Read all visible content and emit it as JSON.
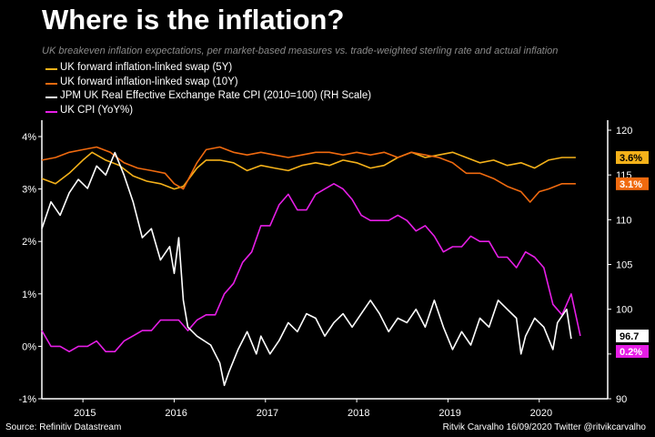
{
  "title": "Where is the inflation?",
  "subtitle": "UK breakeven inflation expectations, per market-based measures vs. trade-weighted sterling rate and actual inflation",
  "footer": {
    "source": "Source: Refinitiv Datastream",
    "credit": "Ritvik Carvalho 16/09/2020 Twitter @ritvikcarvalho"
  },
  "chart_data": {
    "type": "line",
    "x_axis": {
      "ticks": [
        "2015",
        "2016",
        "2017",
        "2018",
        "2019",
        "2020"
      ],
      "range": [
        2014.55,
        2020.75
      ]
    },
    "y_axis_left": {
      "ticks": [
        "-1%",
        "0%",
        "1%",
        "2%",
        "3%",
        "4%"
      ],
      "tick_values": [
        -1,
        0,
        1,
        2,
        3,
        4
      ],
      "range": [
        -1,
        4.3
      ]
    },
    "y_axis_right": {
      "ticks": [
        "90",
        "95",
        "100",
        "105",
        "110",
        "115",
        "120"
      ],
      "tick_values": [
        90,
        95,
        100,
        105,
        110,
        115,
        120
      ],
      "range": [
        90,
        120
      ]
    },
    "grid": false,
    "legend_position": "top-left",
    "series": [
      {
        "name": "UK forward inflation-linked swap (5Y)",
        "color": "#f5b21a",
        "axis": "left",
        "end_label": "3.6%",
        "points": [
          [
            2014.55,
            3.2
          ],
          [
            2014.7,
            3.1
          ],
          [
            2014.85,
            3.3
          ],
          [
            2015.0,
            3.55
          ],
          [
            2015.1,
            3.7
          ],
          [
            2015.25,
            3.55
          ],
          [
            2015.4,
            3.45
          ],
          [
            2015.55,
            3.25
          ],
          [
            2015.7,
            3.15
          ],
          [
            2015.85,
            3.1
          ],
          [
            2016.0,
            3.0
          ],
          [
            2016.1,
            3.05
          ],
          [
            2016.25,
            3.4
          ],
          [
            2016.35,
            3.55
          ],
          [
            2016.5,
            3.55
          ],
          [
            2016.65,
            3.5
          ],
          [
            2016.8,
            3.35
          ],
          [
            2016.95,
            3.45
          ],
          [
            2017.1,
            3.4
          ],
          [
            2017.25,
            3.35
          ],
          [
            2017.4,
            3.45
          ],
          [
            2017.55,
            3.5
          ],
          [
            2017.7,
            3.45
          ],
          [
            2017.85,
            3.55
          ],
          [
            2018.0,
            3.5
          ],
          [
            2018.15,
            3.4
          ],
          [
            2018.3,
            3.45
          ],
          [
            2018.45,
            3.6
          ],
          [
            2018.6,
            3.7
          ],
          [
            2018.75,
            3.6
          ],
          [
            2018.9,
            3.65
          ],
          [
            2019.05,
            3.7
          ],
          [
            2019.2,
            3.6
          ],
          [
            2019.35,
            3.5
          ],
          [
            2019.5,
            3.55
          ],
          [
            2019.65,
            3.45
          ],
          [
            2019.8,
            3.5
          ],
          [
            2019.95,
            3.4
          ],
          [
            2020.1,
            3.55
          ],
          [
            2020.25,
            3.6
          ],
          [
            2020.4,
            3.6
          ]
        ]
      },
      {
        "name": "UK forward inflation-linked swap (10Y)",
        "color": "#f06a0f",
        "axis": "left",
        "end_label": "3.1%",
        "points": [
          [
            2014.55,
            3.55
          ],
          [
            2014.7,
            3.6
          ],
          [
            2014.85,
            3.7
          ],
          [
            2015.0,
            3.75
          ],
          [
            2015.15,
            3.8
          ],
          [
            2015.3,
            3.7
          ],
          [
            2015.45,
            3.5
          ],
          [
            2015.6,
            3.4
          ],
          [
            2015.75,
            3.35
          ],
          [
            2015.9,
            3.3
          ],
          [
            2016.0,
            3.1
          ],
          [
            2016.1,
            3.0
          ],
          [
            2016.25,
            3.5
          ],
          [
            2016.35,
            3.75
          ],
          [
            2016.5,
            3.8
          ],
          [
            2016.65,
            3.7
          ],
          [
            2016.8,
            3.65
          ],
          [
            2016.95,
            3.7
          ],
          [
            2017.1,
            3.65
          ],
          [
            2017.25,
            3.6
          ],
          [
            2017.4,
            3.65
          ],
          [
            2017.55,
            3.7
          ],
          [
            2017.7,
            3.7
          ],
          [
            2017.85,
            3.65
          ],
          [
            2018.0,
            3.7
          ],
          [
            2018.15,
            3.65
          ],
          [
            2018.3,
            3.7
          ],
          [
            2018.45,
            3.6
          ],
          [
            2018.6,
            3.7
          ],
          [
            2018.75,
            3.65
          ],
          [
            2018.9,
            3.6
          ],
          [
            2019.05,
            3.5
          ],
          [
            2019.2,
            3.3
          ],
          [
            2019.35,
            3.3
          ],
          [
            2019.5,
            3.2
          ],
          [
            2019.65,
            3.05
          ],
          [
            2019.8,
            2.95
          ],
          [
            2019.9,
            2.75
          ],
          [
            2020.0,
            2.95
          ],
          [
            2020.1,
            3.0
          ],
          [
            2020.25,
            3.1
          ],
          [
            2020.4,
            3.1
          ]
        ]
      },
      {
        "name": "JPM UK Real Effective Exchange Rate CPI (2010=100) (RH Scale)",
        "color": "#ffffff",
        "axis": "right",
        "end_label": "96.7",
        "points": [
          [
            2014.55,
            109
          ],
          [
            2014.65,
            112
          ],
          [
            2014.75,
            110.5
          ],
          [
            2014.85,
            113
          ],
          [
            2014.95,
            114.5
          ],
          [
            2015.05,
            113.5
          ],
          [
            2015.15,
            116
          ],
          [
            2015.25,
            115
          ],
          [
            2015.35,
            117.5
          ],
          [
            2015.45,
            115
          ],
          [
            2015.55,
            112
          ],
          [
            2015.65,
            108
          ],
          [
            2015.75,
            109
          ],
          [
            2015.85,
            105.5
          ],
          [
            2015.95,
            107
          ],
          [
            2016.0,
            104
          ],
          [
            2016.05,
            108
          ],
          [
            2016.1,
            101
          ],
          [
            2016.15,
            98
          ],
          [
            2016.25,
            97
          ],
          [
            2016.4,
            96
          ],
          [
            2016.5,
            94
          ],
          [
            2016.55,
            91.5
          ],
          [
            2016.6,
            93
          ],
          [
            2016.7,
            95.5
          ],
          [
            2016.8,
            97.5
          ],
          [
            2016.9,
            95
          ],
          [
            2016.95,
            97
          ],
          [
            2017.05,
            95
          ],
          [
            2017.15,
            96.5
          ],
          [
            2017.25,
            98.5
          ],
          [
            2017.35,
            97.5
          ],
          [
            2017.45,
            99.5
          ],
          [
            2017.55,
            99
          ],
          [
            2017.65,
            97
          ],
          [
            2017.75,
            98.5
          ],
          [
            2017.85,
            99.5
          ],
          [
            2017.95,
            98
          ],
          [
            2018.05,
            99.5
          ],
          [
            2018.15,
            101
          ],
          [
            2018.25,
            99.5
          ],
          [
            2018.35,
            97.5
          ],
          [
            2018.45,
            99
          ],
          [
            2018.55,
            98.5
          ],
          [
            2018.65,
            100
          ],
          [
            2018.75,
            98
          ],
          [
            2018.85,
            101
          ],
          [
            2018.95,
            98
          ],
          [
            2019.05,
            95.5
          ],
          [
            2019.15,
            97.5
          ],
          [
            2019.25,
            96
          ],
          [
            2019.35,
            99
          ],
          [
            2019.45,
            98
          ],
          [
            2019.55,
            101
          ],
          [
            2019.65,
            100
          ],
          [
            2019.75,
            99
          ],
          [
            2019.8,
            95
          ],
          [
            2019.85,
            97
          ],
          [
            2019.95,
            99
          ],
          [
            2020.05,
            98
          ],
          [
            2020.15,
            95.5
          ],
          [
            2020.2,
            98.5
          ],
          [
            2020.3,
            100
          ],
          [
            2020.35,
            96.7
          ]
        ]
      },
      {
        "name": "UK CPI (YoY%)",
        "color": "#e61ee6",
        "axis": "left",
        "end_label": "0.2%",
        "points": [
          [
            2014.55,
            0.3
          ],
          [
            2014.65,
            0.0
          ],
          [
            2014.75,
            0.0
          ],
          [
            2014.85,
            -0.1
          ],
          [
            2014.95,
            0.0
          ],
          [
            2015.05,
            0.0
          ],
          [
            2015.15,
            0.1
          ],
          [
            2015.25,
            -0.1
          ],
          [
            2015.35,
            -0.1
          ],
          [
            2015.45,
            0.1
          ],
          [
            2015.55,
            0.2
          ],
          [
            2015.65,
            0.3
          ],
          [
            2015.75,
            0.3
          ],
          [
            2015.85,
            0.5
          ],
          [
            2015.95,
            0.5
          ],
          [
            2016.05,
            0.5
          ],
          [
            2016.15,
            0.3
          ],
          [
            2016.25,
            0.5
          ],
          [
            2016.35,
            0.6
          ],
          [
            2016.45,
            0.6
          ],
          [
            2016.55,
            1.0
          ],
          [
            2016.65,
            1.2
          ],
          [
            2016.75,
            1.6
          ],
          [
            2016.85,
            1.8
          ],
          [
            2016.95,
            2.3
          ],
          [
            2017.05,
            2.3
          ],
          [
            2017.15,
            2.7
          ],
          [
            2017.25,
            2.9
          ],
          [
            2017.35,
            2.6
          ],
          [
            2017.45,
            2.6
          ],
          [
            2017.55,
            2.9
          ],
          [
            2017.65,
            3.0
          ],
          [
            2017.75,
            3.1
          ],
          [
            2017.85,
            3.0
          ],
          [
            2017.95,
            2.8
          ],
          [
            2018.05,
            2.5
          ],
          [
            2018.15,
            2.4
          ],
          [
            2018.25,
            2.4
          ],
          [
            2018.35,
            2.4
          ],
          [
            2018.45,
            2.5
          ],
          [
            2018.55,
            2.4
          ],
          [
            2018.65,
            2.2
          ],
          [
            2018.75,
            2.3
          ],
          [
            2018.85,
            2.1
          ],
          [
            2018.95,
            1.8
          ],
          [
            2019.05,
            1.9
          ],
          [
            2019.15,
            1.9
          ],
          [
            2019.25,
            2.1
          ],
          [
            2019.35,
            2.0
          ],
          [
            2019.45,
            2.0
          ],
          [
            2019.55,
            1.7
          ],
          [
            2019.65,
            1.7
          ],
          [
            2019.75,
            1.5
          ],
          [
            2019.85,
            1.8
          ],
          [
            2019.95,
            1.7
          ],
          [
            2020.05,
            1.5
          ],
          [
            2020.15,
            0.8
          ],
          [
            2020.25,
            0.6
          ],
          [
            2020.35,
            1.0
          ],
          [
            2020.45,
            0.2
          ]
        ]
      }
    ]
  }
}
